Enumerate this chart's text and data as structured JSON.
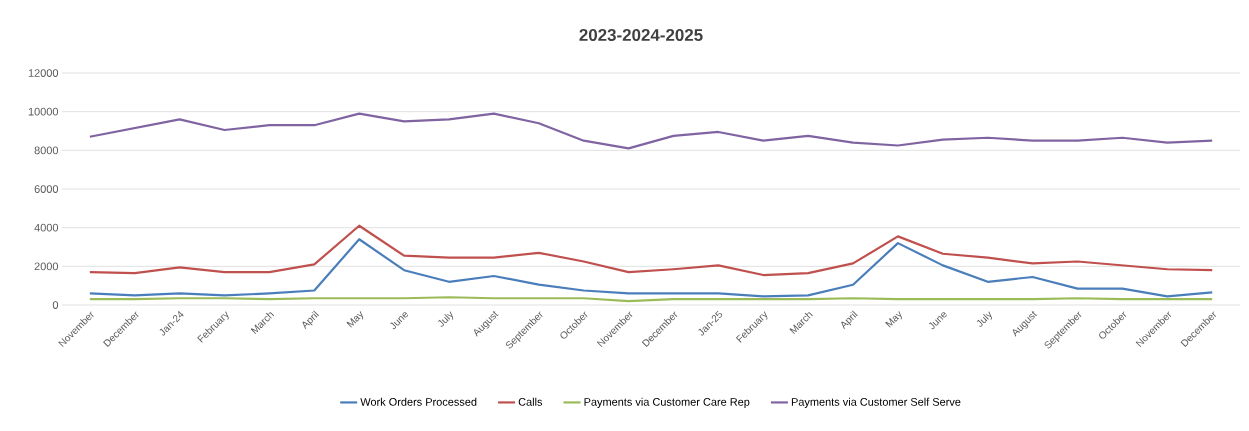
{
  "chart_data": {
    "type": "line",
    "title": "2023-2024-2025",
    "categories": [
      "November",
      "December",
      "Jan-24",
      "February",
      "March",
      "April",
      "May",
      "June",
      "July",
      "August",
      "September",
      "October",
      "November",
      "December",
      "Jan-25",
      "February",
      "March",
      "April",
      "May",
      "June",
      "July",
      "August",
      "September",
      "October",
      "November",
      "December"
    ],
    "series": [
      {
        "name": "Work Orders Processed",
        "color": "#4a7ebb",
        "values": [
          600,
          500,
          600,
          500,
          600,
          750,
          3400,
          1800,
          1200,
          1500,
          1050,
          750,
          600,
          600,
          600,
          450,
          500,
          1050,
          3200,
          2050,
          1200,
          1450,
          850,
          850,
          450,
          650
        ]
      },
      {
        "name": "Calls",
        "color": "#c0504d",
        "values": [
          1700,
          1650,
          1950,
          1700,
          1700,
          2100,
          4100,
          2550,
          2450,
          2450,
          2700,
          2250,
          1700,
          1850,
          2050,
          1550,
          1650,
          2150,
          3550,
          2650,
          2450,
          2150,
          2250,
          2050,
          1850,
          1800
        ]
      },
      {
        "name": "Payments via Customer Care Rep",
        "color": "#9bbb59",
        "values": [
          300,
          300,
          350,
          350,
          300,
          350,
          350,
          350,
          400,
          350,
          350,
          350,
          200,
          300,
          300,
          300,
          300,
          350,
          300,
          300,
          300,
          300,
          350,
          300,
          300,
          300
        ]
      },
      {
        "name": "Payments via Customer Self Serve",
        "color": "#8064a2",
        "values": [
          8700,
          9150,
          9600,
          9050,
          9300,
          9300,
          9900,
          9500,
          9600,
          9900,
          9400,
          8500,
          8100,
          8750,
          8950,
          8500,
          8750,
          8400,
          8250,
          8550,
          8650,
          8500,
          8500,
          8650,
          8400,
          8500
        ]
      }
    ],
    "ylim": [
      0,
      12000
    ],
    "yticks": [
      0,
      2000,
      4000,
      6000,
      8000,
      10000,
      12000
    ],
    "grid": "y",
    "legend": "bottom",
    "marker": "none",
    "line_style": "solid"
  }
}
